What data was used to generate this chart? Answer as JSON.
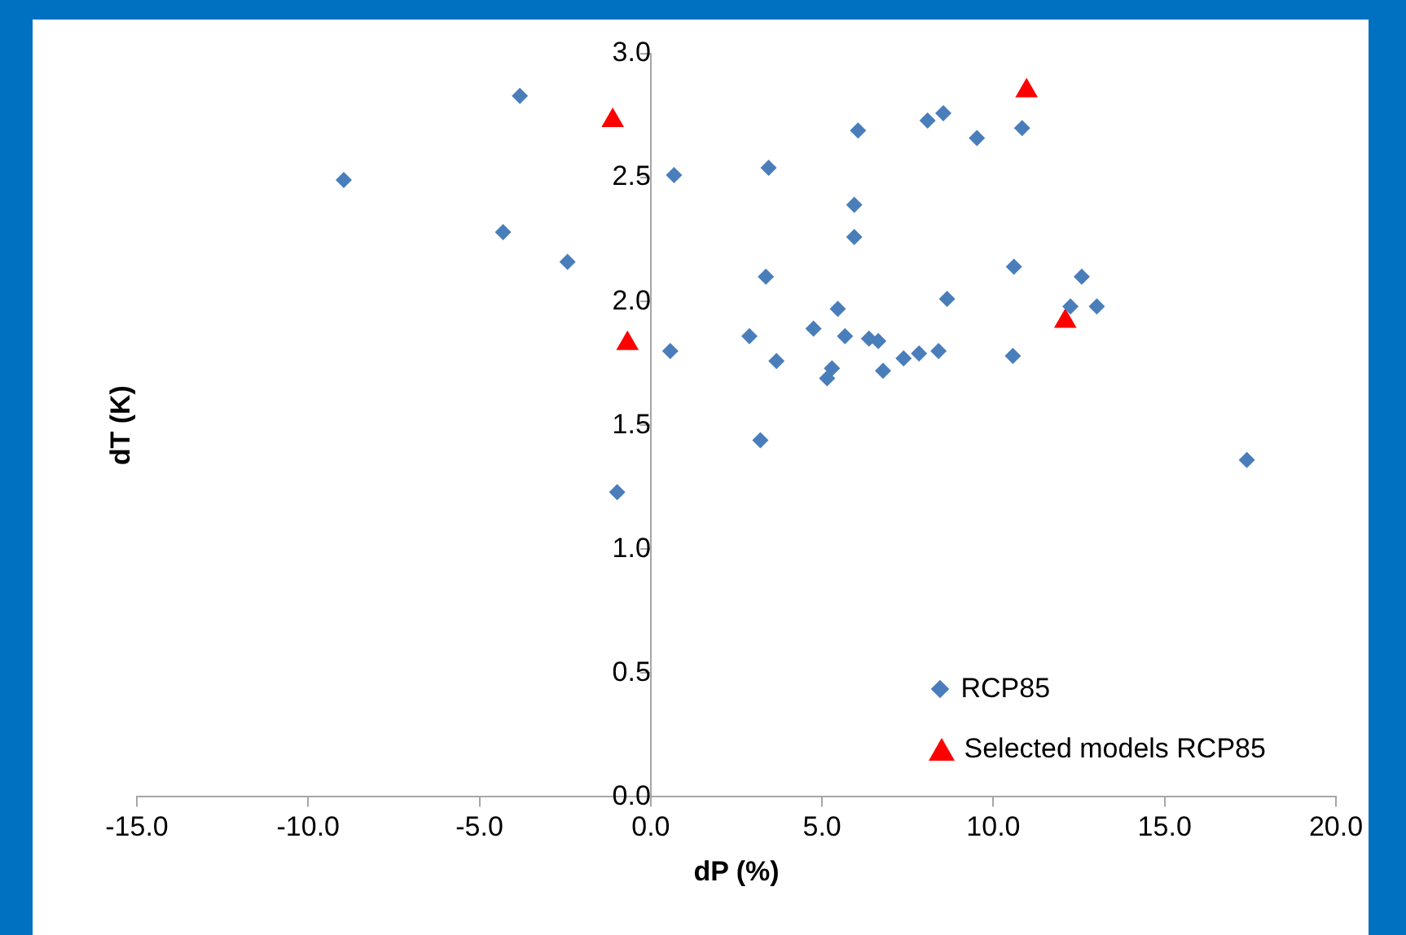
{
  "chart_data": {
    "type": "scatter",
    "xlabel": "dP (%)",
    "ylabel": "dT (K)",
    "xlim": [
      -15,
      20
    ],
    "ylim": [
      0,
      3
    ],
    "xticks": [
      {
        "value": -15,
        "label": "-15.0"
      },
      {
        "value": -10,
        "label": "-10.0"
      },
      {
        "value": -5,
        "label": "-5.0"
      },
      {
        "value": 0,
        "label": "0.0"
      },
      {
        "value": 5,
        "label": "5.0"
      },
      {
        "value": 10,
        "label": "10.0"
      },
      {
        "value": 15,
        "label": "15.0"
      },
      {
        "value": 20,
        "label": "20.0"
      }
    ],
    "yticks": [
      {
        "value": 0,
        "label": "0.0"
      },
      {
        "value": 0.5,
        "label": "0.5"
      },
      {
        "value": 1,
        "label": "1.0"
      },
      {
        "value": 1.5,
        "label": "1.5"
      },
      {
        "value": 2,
        "label": "2.0"
      },
      {
        "value": 2.5,
        "label": "2.5"
      },
      {
        "value": 3,
        "label": "3.0"
      }
    ],
    "grid": false,
    "legend": "bottom right",
    "series": [
      {
        "name": "RCP85",
        "color": "#4a7ebb",
        "marker": "diamond",
        "x": [
          -8.96,
          -3.82,
          -4.31,
          -2.43,
          -0.98,
          0.68,
          0.57,
          3.44,
          6.05,
          8.08,
          8.54,
          9.52,
          10.84,
          5.94,
          5.94,
          3.36,
          10.6,
          12.58,
          8.65,
          12.25,
          13.02,
          5.46,
          2.88,
          4.75,
          5.67,
          6.37,
          6.64,
          3.67,
          5.29,
          5.15,
          6.78,
          7.38,
          7.83,
          8.4,
          10.57,
          3.2,
          17.4
        ],
        "values": [
          2.49,
          2.83,
          2.28,
          2.16,
          1.23,
          2.51,
          1.8,
          2.54,
          2.69,
          2.73,
          2.76,
          2.66,
          2.7,
          2.39,
          2.26,
          2.1,
          2.14,
          2.1,
          2.01,
          1.98,
          1.98,
          1.97,
          1.86,
          1.89,
          1.86,
          1.85,
          1.84,
          1.76,
          1.73,
          1.69,
          1.72,
          1.77,
          1.79,
          1.8,
          1.78,
          1.44,
          1.36
        ]
      },
      {
        "name": "Selected models RCP85",
        "color": "#ff0000",
        "marker": "triangle",
        "x": [
          -1.11,
          -0.68,
          10.97,
          12.1
        ],
        "values": [
          2.73,
          1.83,
          2.85,
          1.92
        ]
      }
    ]
  }
}
